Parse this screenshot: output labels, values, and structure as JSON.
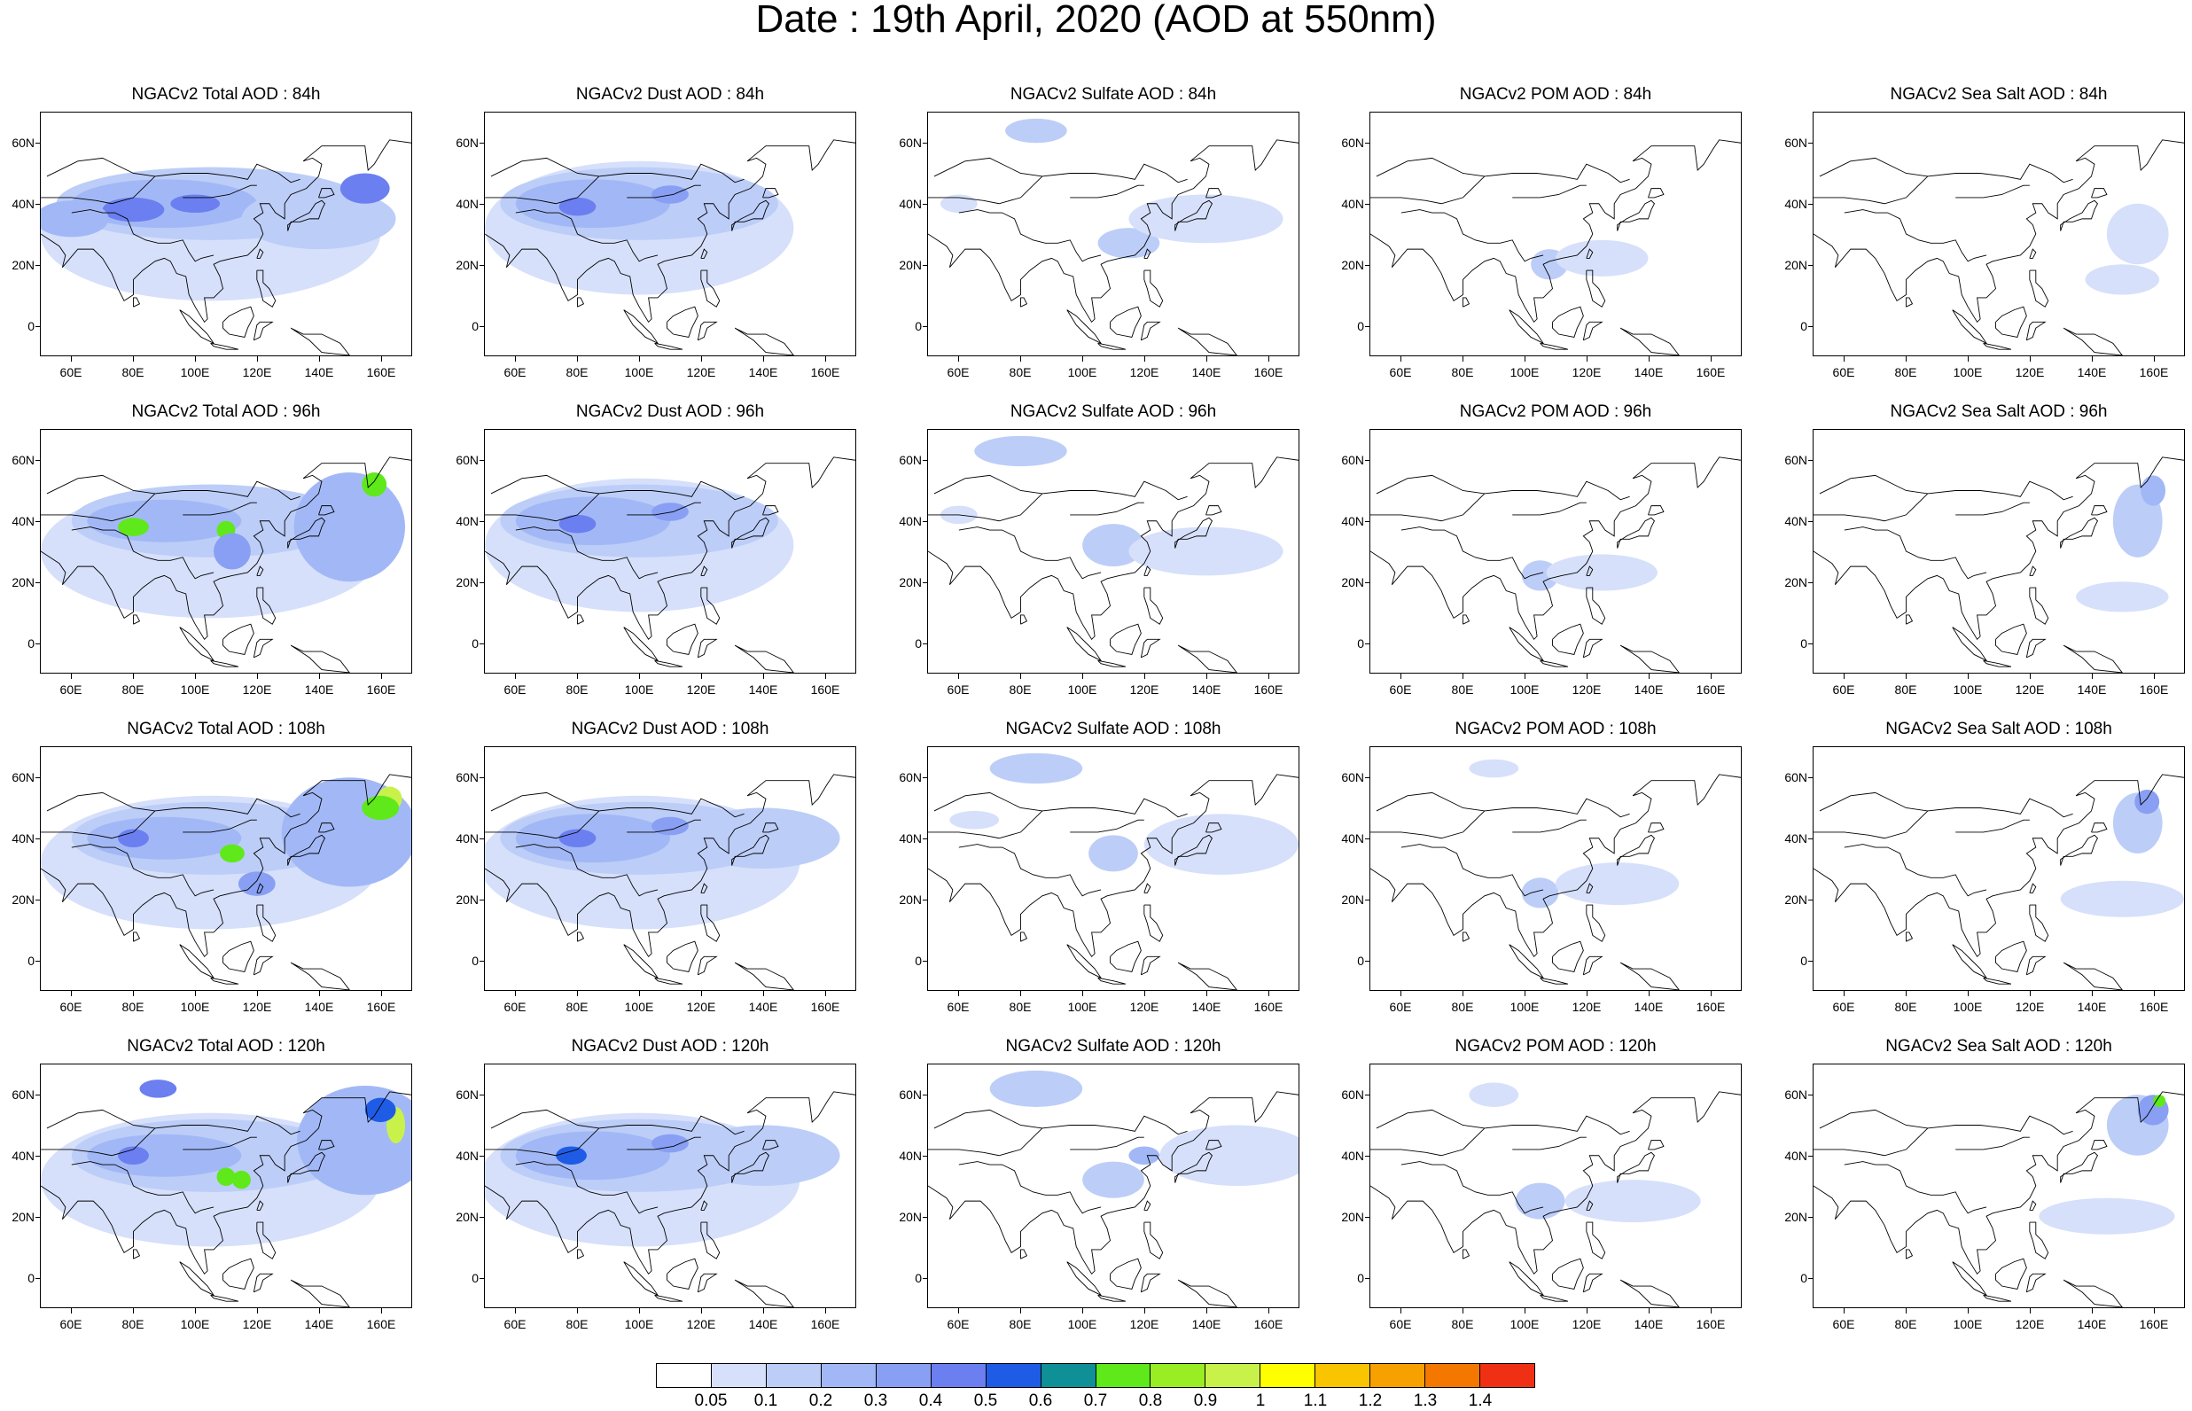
{
  "title": "Date : 19th April, 2020 (AOD at 550nm)",
  "lat_labels": [
    "60N",
    "40N",
    "20N",
    "0"
  ],
  "lon_labels": [
    "60E",
    "80E",
    "100E",
    "120E",
    "140E",
    "160E"
  ],
  "species": [
    {
      "key": "total",
      "prefix": "NGACv2 Total AOD"
    },
    {
      "key": "dust",
      "prefix": "NGACv2 Dust AOD"
    },
    {
      "key": "sulfate",
      "prefix": "NGACv2 Sulfate AOD"
    },
    {
      "key": "pom",
      "prefix": "NGACv2 POM AOD"
    },
    {
      "key": "seasalt",
      "prefix": "NGACv2 Sea Salt AOD"
    }
  ],
  "panel_titles": [
    [
      "NGACv2 Total AOD : 84h",
      "NGACv2 Dust AOD : 84h",
      "NGACv2 Sulfate AOD : 84h",
      "NGACv2 POM AOD : 84h",
      "NGACv2 Sea Salt AOD : 84h"
    ],
    [
      "NGACv2 Total AOD : 96h",
      "NGACv2 Dust AOD : 96h",
      "NGACv2 Sulfate AOD : 96h",
      "NGACv2 POM AOD : 96h",
      "NGACv2 Sea Salt AOD : 96h"
    ],
    [
      "NGACv2 Total AOD : 108h",
      "NGACv2 Dust AOD : 108h",
      "NGACv2 Sulfate AOD : 108h",
      "NGACv2 POM AOD : 108h",
      "NGACv2 Sea Salt AOD : 108h"
    ],
    [
      "NGACv2 Total AOD : 120h",
      "NGACv2 Dust AOD : 120h",
      "NGACv2 Sulfate AOD : 120h",
      "NGACv2 POM AOD : 120h",
      "NGACv2 Sea Salt  AOD : 120h"
    ]
  ],
  "forecast_hours": [
    "84h",
    "96h",
    "108h",
    "120h"
  ],
  "map_extent": {
    "lon_min": 50,
    "lon_max": 170,
    "lat_min": -10,
    "lat_max": 70
  },
  "colorbar": {
    "colors": [
      "#ffffff",
      "#d6e0fb",
      "#bccdf8",
      "#a2b8f6",
      "#889ff3",
      "#6b7ff0",
      "#1f5ce6",
      "#0f8f96",
      "#5fe81a",
      "#98ee22",
      "#c8f24a",
      "#ffff00",
      "#f9c400",
      "#f7a100",
      "#f47800",
      "#f03015"
    ],
    "labels": [
      "0.05",
      "0.1",
      "0.2",
      "0.3",
      "0.4",
      "0.5",
      "0.6",
      "0.7",
      "0.8",
      "0.9",
      "1",
      "1.1",
      "1.2",
      "1.3",
      "1.4"
    ]
  },
  "blob_colors": {
    "c1": "#d6e0fb",
    "c2": "#bccdf8",
    "c3": "#a2b8f6",
    "c4": "#889ff3",
    "c5": "#6b7ff0",
    "c6": "#1f5ce6",
    "c8": "#5fe81a",
    "c10": "#c8f24a"
  }
}
